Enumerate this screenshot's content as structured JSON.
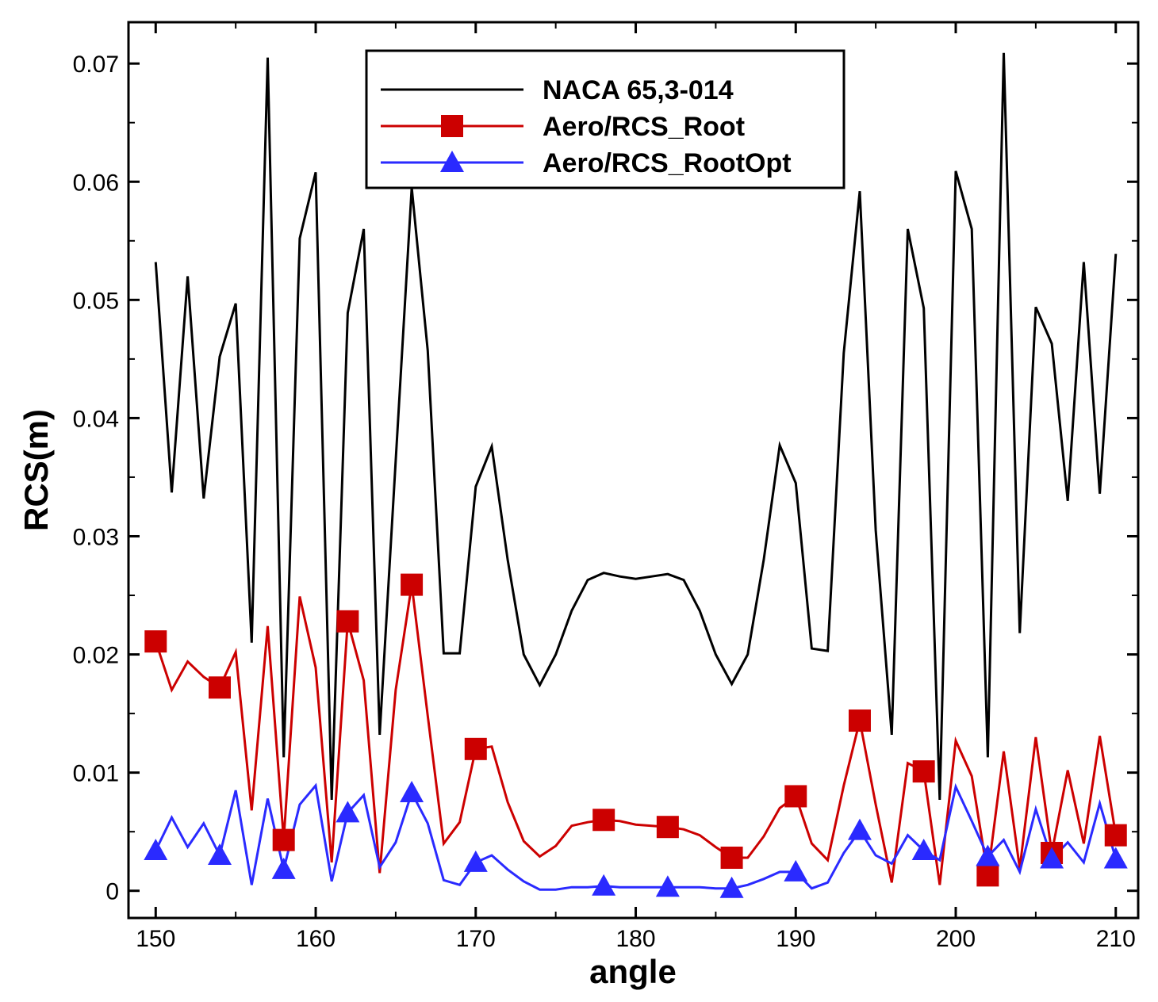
{
  "chart_data": {
    "type": "line",
    "title": "",
    "xlabel": "angle",
    "ylabel": "RCS(m)",
    "xlim": [
      148.3,
      211.4
    ],
    "ylim": [
      -0.0023,
      0.0735
    ],
    "xticks": [
      150,
      160,
      170,
      180,
      190,
      200,
      210
    ],
    "yticks": [
      0,
      0.01,
      0.02,
      0.03,
      0.04,
      0.05,
      0.06,
      0.07
    ],
    "ytick_labels": [
      "0",
      "0.01",
      "0.02",
      "0.03",
      "0.04",
      "0.05",
      "0.06",
      "0.07"
    ],
    "grid": false,
    "legend_position": "top-center",
    "x": [
      150,
      151,
      152,
      153,
      154,
      155,
      156,
      157,
      158,
      159,
      160,
      161,
      162,
      163,
      164,
      165,
      166,
      167,
      168,
      169,
      170,
      171,
      172,
      173,
      174,
      175,
      176,
      177,
      178,
      179,
      180,
      181,
      182,
      183,
      184,
      185,
      186,
      187,
      188,
      189,
      190,
      191,
      192,
      193,
      194,
      195,
      196,
      197,
      198,
      199,
      200,
      201,
      202,
      203,
      204,
      205,
      206,
      207,
      208,
      209,
      210
    ],
    "series": [
      {
        "name": "NACA 65,3-014",
        "color": "#000000",
        "marker": "none",
        "values": [
          0.0532,
          0.0337,
          0.052,
          0.0332,
          0.0452,
          0.0497,
          0.021,
          0.0705,
          0.0113,
          0.0552,
          0.0608,
          0.0077,
          0.0489,
          0.056,
          0.0132,
          0.0364,
          0.0595,
          0.0457,
          0.0201,
          0.0201,
          0.0342,
          0.0376,
          0.028,
          0.02,
          0.0174,
          0.02,
          0.0237,
          0.0263,
          0.0269,
          0.0266,
          0.0264,
          0.0266,
          0.0268,
          0.0263,
          0.0237,
          0.02,
          0.0175,
          0.02,
          0.028,
          0.0377,
          0.0345,
          0.0205,
          0.0203,
          0.0455,
          0.0592,
          0.0305,
          0.0132,
          0.056,
          0.0493,
          0.0077,
          0.0609,
          0.056,
          0.0113,
          0.0709,
          0.0218,
          0.0494,
          0.0463,
          0.033,
          0.0532,
          0.0336,
          0.0539
        ]
      },
      {
        "name": "Aero/RCS_Root",
        "color": "#cc0000",
        "marker": "square",
        "marker_indices": [
          0,
          4,
          8,
          12,
          16,
          20,
          28,
          32,
          36,
          40,
          44,
          48,
          52,
          56,
          60
        ],
        "values": [
          0.0211,
          0.017,
          0.0194,
          0.0181,
          0.0172,
          0.0202,
          0.0068,
          0.0224,
          0.0043,
          0.0249,
          0.0189,
          0.0024,
          0.0228,
          0.0178,
          0.0015,
          0.017,
          0.0259,
          0.0148,
          0.004,
          0.0058,
          0.012,
          0.0122,
          0.0075,
          0.0042,
          0.0029,
          0.0038,
          0.0055,
          0.0058,
          0.006,
          0.0059,
          0.0056,
          0.0055,
          0.0054,
          0.0052,
          0.0047,
          0.0037,
          0.0028,
          0.0028,
          0.0046,
          0.007,
          0.008,
          0.004,
          0.0026,
          0.0089,
          0.0144,
          0.0073,
          0.0007,
          0.0108,
          0.0101,
          0.0005,
          0.0127,
          0.0097,
          0.0013,
          0.0118,
          0.0019,
          0.013,
          0.0032,
          0.0102,
          0.004,
          0.0131,
          0.0047
        ]
      },
      {
        "name": "Aero/RCS_RootOpt",
        "color": "#2a2aff",
        "marker": "triangle",
        "marker_indices": [
          0,
          4,
          8,
          12,
          16,
          20,
          28,
          32,
          36,
          40,
          44,
          48,
          52,
          56,
          60
        ],
        "values": [
          0.0034,
          0.0062,
          0.0037,
          0.0057,
          0.003,
          0.0085,
          0.0005,
          0.0078,
          0.0018,
          0.0073,
          0.0089,
          0.0008,
          0.0066,
          0.0081,
          0.002,
          0.0041,
          0.0083,
          0.0057,
          0.0009,
          0.0005,
          0.0024,
          0.003,
          0.0018,
          0.0008,
          0.0001,
          0.0001,
          0.0003,
          0.0003,
          0.0004,
          0.0003,
          0.0003,
          0.0003,
          0.0003,
          0.0003,
          0.0003,
          0.0002,
          0.0002,
          0.0005,
          0.001,
          0.0016,
          0.0016,
          0.0002,
          0.0007,
          0.0032,
          0.0051,
          0.003,
          0.0023,
          0.0047,
          0.0034,
          0.0026,
          0.0088,
          0.0059,
          0.0029,
          0.0043,
          0.0016,
          0.0069,
          0.0027,
          0.0041,
          0.0024,
          0.0074,
          0.0027
        ]
      }
    ]
  }
}
